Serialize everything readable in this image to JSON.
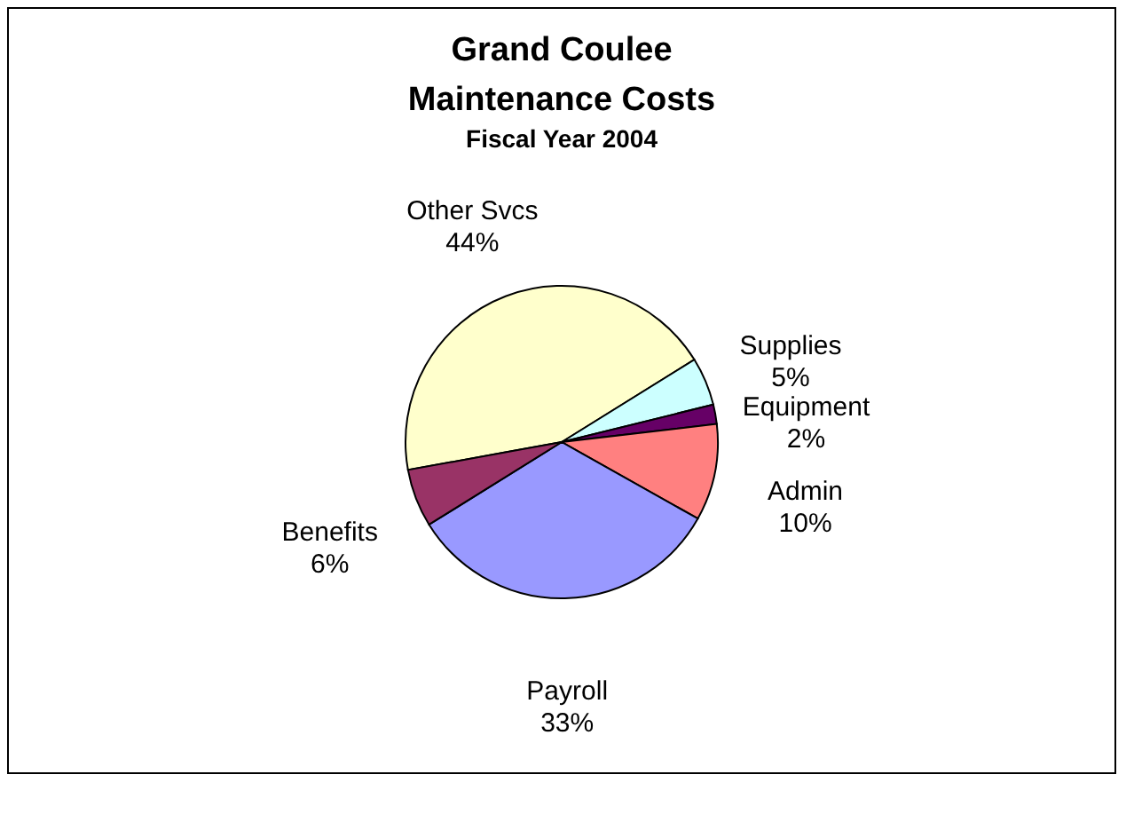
{
  "chart_data": {
    "type": "pie",
    "title": "Grand Coulee Maintenance Costs",
    "subtitle": "Fiscal Year 2004",
    "categories": [
      "Other Svcs",
      "Supplies",
      "Equipment",
      "Admin",
      "Payroll",
      "Benefits"
    ],
    "values": [
      44,
      5,
      2,
      10,
      33,
      6
    ],
    "colors": [
      "#ffffcc",
      "#ccffff",
      "#660066",
      "#ff8080",
      "#9999ff",
      "#993366"
    ],
    "value_labels": [
      "44%",
      "5%",
      "2%",
      "10%",
      "33%",
      "6%"
    ],
    "legend": false
  }
}
